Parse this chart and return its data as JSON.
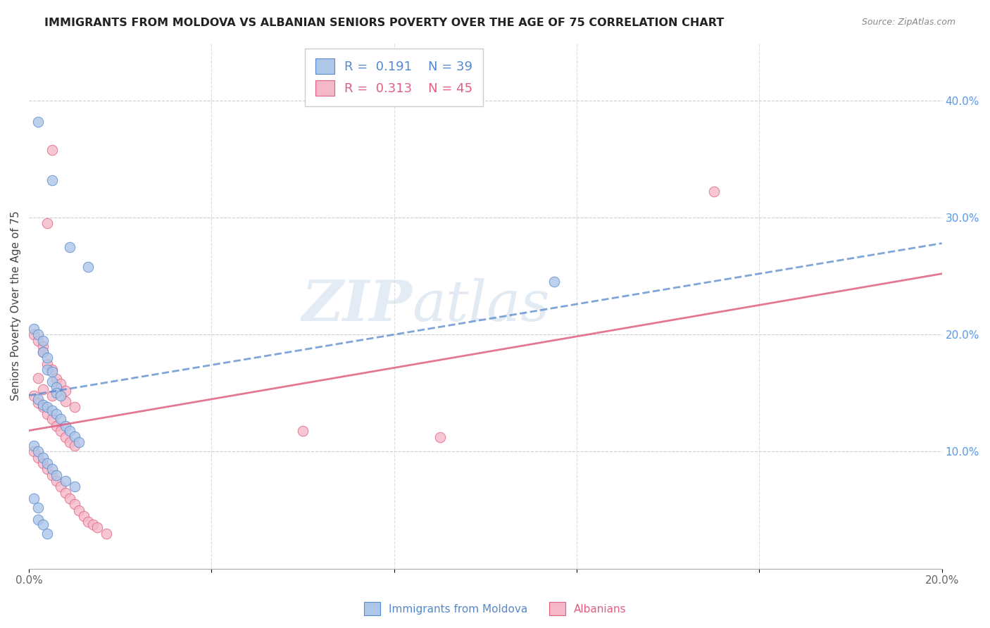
{
  "title": "IMMIGRANTS FROM MOLDOVA VS ALBANIAN SENIORS POVERTY OVER THE AGE OF 75 CORRELATION CHART",
  "source": "Source: ZipAtlas.com",
  "ylabel": "Seniors Poverty Over the Age of 75",
  "legend_label1": "Immigrants from Moldova",
  "legend_label2": "Albanians",
  "r1": "0.191",
  "n1": "39",
  "r2": "0.313",
  "n2": "45",
  "xmin": 0.0,
  "xmax": 0.2,
  "ymin": 0.0,
  "ymax": 0.45,
  "blue_color": "#aec6e8",
  "pink_color": "#f4b8c8",
  "blue_line_color": "#5588cc",
  "pink_line_color": "#e06080",
  "watermark_zip": "ZIP",
  "watermark_atlas": "atlas",
  "blue_scatter_x": [
    0.002,
    0.005,
    0.009,
    0.013,
    0.001,
    0.002,
    0.003,
    0.003,
    0.004,
    0.004,
    0.005,
    0.005,
    0.006,
    0.006,
    0.007,
    0.002,
    0.003,
    0.004,
    0.005,
    0.006,
    0.007,
    0.008,
    0.009,
    0.01,
    0.011,
    0.001,
    0.002,
    0.003,
    0.004,
    0.005,
    0.006,
    0.008,
    0.01,
    0.115,
    0.001,
    0.002,
    0.002,
    0.003,
    0.004
  ],
  "blue_scatter_y": [
    0.382,
    0.332,
    0.275,
    0.258,
    0.205,
    0.2,
    0.195,
    0.185,
    0.18,
    0.17,
    0.168,
    0.16,
    0.155,
    0.15,
    0.148,
    0.145,
    0.14,
    0.138,
    0.135,
    0.132,
    0.128,
    0.122,
    0.118,
    0.113,
    0.108,
    0.105,
    0.1,
    0.095,
    0.09,
    0.085,
    0.08,
    0.075,
    0.07,
    0.245,
    0.06,
    0.052,
    0.042,
    0.038,
    0.03
  ],
  "pink_scatter_x": [
    0.005,
    0.004,
    0.001,
    0.002,
    0.003,
    0.003,
    0.004,
    0.005,
    0.006,
    0.007,
    0.008,
    0.001,
    0.002,
    0.003,
    0.004,
    0.005,
    0.006,
    0.007,
    0.008,
    0.009,
    0.01,
    0.001,
    0.002,
    0.003,
    0.004,
    0.005,
    0.006,
    0.007,
    0.008,
    0.009,
    0.01,
    0.011,
    0.012,
    0.013,
    0.014,
    0.015,
    0.017,
    0.06,
    0.09,
    0.15,
    0.002,
    0.003,
    0.005,
    0.008,
    0.01
  ],
  "pink_scatter_y": [
    0.358,
    0.295,
    0.2,
    0.195,
    0.19,
    0.185,
    0.175,
    0.17,
    0.162,
    0.158,
    0.152,
    0.148,
    0.142,
    0.138,
    0.132,
    0.128,
    0.122,
    0.118,
    0.112,
    0.108,
    0.105,
    0.1,
    0.095,
    0.09,
    0.085,
    0.08,
    0.075,
    0.07,
    0.065,
    0.06,
    0.055,
    0.05,
    0.045,
    0.04,
    0.038,
    0.035,
    0.03,
    0.118,
    0.112,
    0.322,
    0.163,
    0.153,
    0.148,
    0.143,
    0.138
  ],
  "blue_line_x0": 0.0,
  "blue_line_y0": 0.148,
  "blue_line_x1": 0.2,
  "blue_line_y1": 0.278,
  "pink_line_x0": 0.0,
  "pink_line_y0": 0.118,
  "pink_line_x1": 0.2,
  "pink_line_y1": 0.252,
  "xticks": [
    0.0,
    0.04,
    0.08,
    0.12,
    0.16,
    0.2
  ],
  "yticks_right": [
    0.0,
    0.1,
    0.2,
    0.3,
    0.4
  ],
  "ytick_right_labels": [
    "",
    "10.0%",
    "20.0%",
    "30.0%",
    "40.0%"
  ]
}
